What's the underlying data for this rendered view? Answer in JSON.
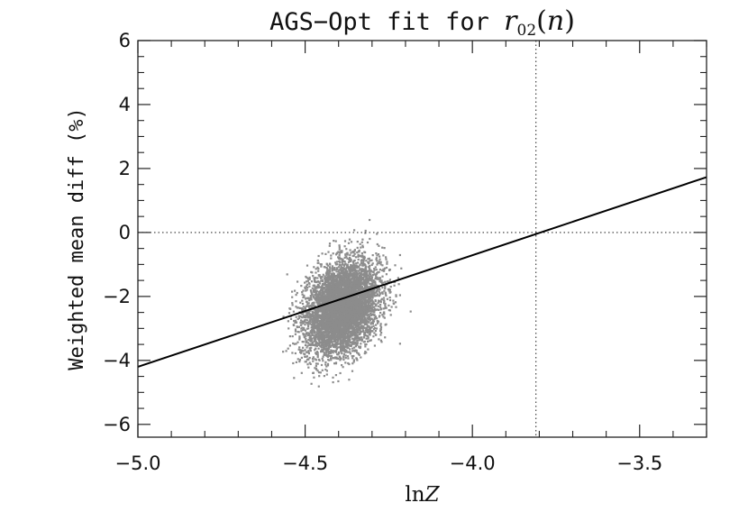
{
  "chart_data": {
    "type": "scatter",
    "title": {
      "prefix": "AGS−Opt fit for ",
      "symbol": "r",
      "subscript": "02",
      "open": "(",
      "argument": "n",
      "close": ")"
    },
    "xlabel": {
      "prefix": "ln",
      "symbol": "Z"
    },
    "ylabel": "Weighted mean diff (%)",
    "xlim": [
      -5.0,
      -3.3
    ],
    "ylim": [
      -6.4,
      6.0
    ],
    "x_ticks": [
      {
        "value": -5.0,
        "label": "−5.0"
      },
      {
        "value": -4.5,
        "label": "−4.5"
      },
      {
        "value": -4.0,
        "label": "−4.0"
      },
      {
        "value": -3.5,
        "label": "−3.5"
      }
    ],
    "y_ticks": [
      {
        "value": -6,
        "label": "−6"
      },
      {
        "value": -4,
        "label": "−4"
      },
      {
        "value": -2,
        "label": "−2"
      },
      {
        "value": 0,
        "label": "0"
      },
      {
        "value": 2,
        "label": "2"
      },
      {
        "value": 4,
        "label": "4"
      },
      {
        "value": 6,
        "label": "6"
      }
    ],
    "x_minor_step": 0.1,
    "y_minor_step": 0.5,
    "grid": false,
    "series": [
      {
        "kind": "scatter",
        "color": "#8c8c8c",
        "cloud": {
          "center_x": -4.39,
          "center_y": -2.35,
          "sd_x": 0.055,
          "sd_y": 0.72,
          "correlation": 0.3,
          "n": 6000,
          "x_range": [
            -4.57,
            -4.13
          ],
          "y_range": [
            -4.85,
            0.7
          ]
        }
      },
      {
        "kind": "line",
        "color": "#000000",
        "points": [
          {
            "x": -5.0,
            "y": -4.2
          },
          {
            "x": -3.3,
            "y": 1.73
          }
        ]
      }
    ],
    "reference_lines": [
      {
        "orientation": "horizontal",
        "value": 0,
        "style": "dotted"
      },
      {
        "orientation": "vertical",
        "value": -3.81,
        "style": "dotted"
      }
    ]
  }
}
